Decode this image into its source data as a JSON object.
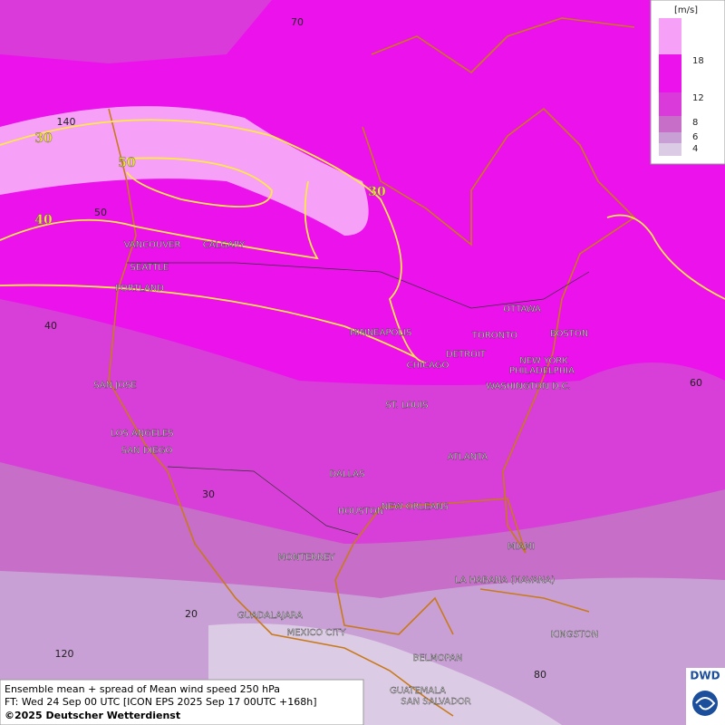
{
  "legend": {
    "unit": "[m/s]",
    "labels": [
      "18",
      "12",
      "8",
      "6",
      "4"
    ]
  },
  "contour_labels": [
    "30",
    "50",
    "40",
    "30"
  ],
  "grid_labels": [
    "70",
    "140",
    "50",
    "40",
    "60",
    "30",
    "20",
    "120",
    "80"
  ],
  "cities": [
    "VANCOUVER",
    "CALGARY",
    "SEATTLE",
    "PORTLAND",
    "MINNEAPOLIS",
    "TORONTO",
    "OTTAWA",
    "DETROIT",
    "CHICAGO",
    "BOSTON",
    "NEW YORK",
    "PHILADELPHIA",
    "WASHINGTON D.C.",
    "SAN JOSE",
    "ST. LOUIS",
    "LOS ANGELES",
    "SAN DIEGO",
    "ATLANTA",
    "DALLAS",
    "HOUSTON",
    "NEW ORLEANS",
    "MIAMI",
    "MONTERREY",
    "LA HABANA (HAVANA)",
    "GUADALAJARA",
    "MEXICO CITY",
    "KINGSTON",
    "BELMOPAN",
    "GUATEMALA",
    "SAN SALVADOR"
  ],
  "info": {
    "line1": "Ensemble mean + spread of Mean wind speed 250 hPa",
    "line2": "FT: Wed 24 Sep 00 UTC [ICON EPS 2025 Sep 17 00UTC +168h]",
    "line3": "©2025 Deutscher Wetterdienst"
  },
  "logo": "DWD"
}
